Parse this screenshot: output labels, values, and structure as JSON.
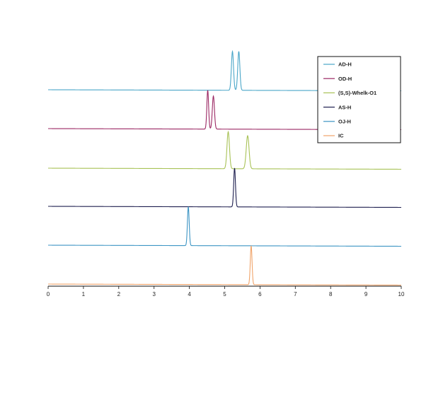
{
  "chart_data": {
    "type": "line",
    "title": "",
    "xlabel": "",
    "ylabel": "",
    "xlim": [
      0,
      10
    ],
    "xticks": [
      0,
      1,
      2,
      3,
      4,
      5,
      6,
      7,
      8,
      9,
      10
    ],
    "grid": false,
    "legend_position": "top-right",
    "series": [
      {
        "name": "AD-H",
        "color": "#4aa6c8",
        "peaks": [
          {
            "x": 5.22,
            "height": 1.0,
            "width": 0.03
          },
          {
            "x": 5.4,
            "height": 1.0,
            "width": 0.03
          }
        ]
      },
      {
        "name": "OD-H",
        "color": "#9b2763",
        "peaks": [
          {
            "x": 4.52,
            "height": 1.0,
            "width": 0.025
          },
          {
            "x": 4.68,
            "height": 0.85,
            "width": 0.03
          }
        ]
      },
      {
        "name": "(S,S)-Whelk-O1",
        "color": "#a8c256",
        "peaks": [
          {
            "x": 5.1,
            "height": 0.95,
            "width": 0.035
          },
          {
            "x": 5.65,
            "height": 0.85,
            "width": 0.04
          }
        ]
      },
      {
        "name": "AS-H",
        "color": "#1e1f4f",
        "peaks": [
          {
            "x": 5.28,
            "height": 1.0,
            "width": 0.025
          }
        ]
      },
      {
        "name": "OJ-H",
        "color": "#3d95c4",
        "peaks": [
          {
            "x": 3.97,
            "height": 1.0,
            "width": 0.025
          }
        ]
      },
      {
        "name": "IC",
        "color": "#f0a46a",
        "peaks": [
          {
            "x": 5.75,
            "height": 1.0,
            "width": 0.025
          }
        ]
      }
    ]
  }
}
